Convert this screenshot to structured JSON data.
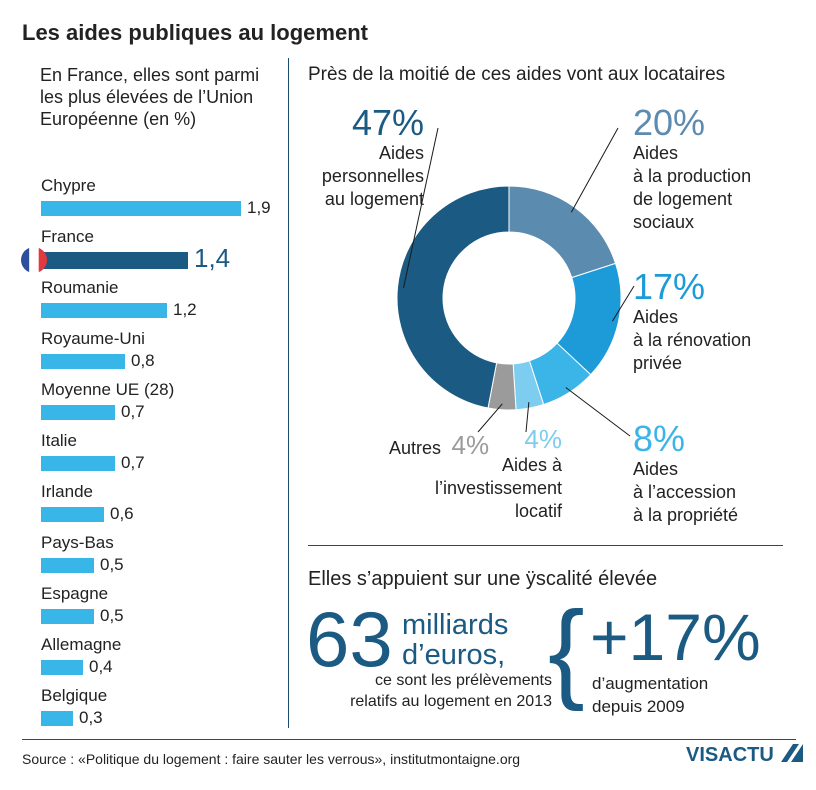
{
  "title": "Les aides publiques au logement",
  "left_intro": "En France, elles sont parmi les plus élevées de l’Union Européenne (en %)",
  "right_title": "Près de la moitié de ces aides vont aux locataires",
  "colors": {
    "bar": "#38b6e8",
    "bar_highlight": "#1b5a82",
    "donut_personnelles": "#1b5a82",
    "donut_production": "#5c8bb0",
    "donut_renovation": "#1d9ad8",
    "donut_accession": "#3bb4e8",
    "donut_investissement": "#7ccdf0",
    "donut_autres": "#9b9b9b"
  },
  "chart_data": [
    {
      "type": "bar",
      "orientation": "horizontal",
      "categories": [
        "Chypre",
        "France",
        "Roumanie",
        "Royaume-Uni",
        "Moyenne UE (28)",
        "Italie",
        "Irlande",
        "Pays-Bas",
        "Espagne",
        "Allemagne",
        "Belgique"
      ],
      "values": [
        1.9,
        1.4,
        1.2,
        0.8,
        0.7,
        0.7,
        0.6,
        0.5,
        0.5,
        0.4,
        0.3
      ],
      "value_labels": [
        "1,9",
        "1,4",
        "1,2",
        "0,8",
        "0,7",
        "0,7",
        "0,6",
        "0,5",
        "0,5",
        "0,4",
        "0,3"
      ],
      "highlight": "France",
      "title": "",
      "xlim": [
        0,
        2.0
      ]
    },
    {
      "type": "pie",
      "donut": true,
      "slices": [
        {
          "key": "production",
          "pct_label": "20%",
          "value": 20,
          "label_lines": [
            "Aides",
            "à la production",
            "de logement",
            "sociaux"
          ]
        },
        {
          "key": "renovation",
          "pct_label": "17%",
          "value": 17,
          "label_lines": [
            "Aides",
            "à la rénovation",
            "privée"
          ]
        },
        {
          "key": "accession",
          "pct_label": "8%",
          "value": 8,
          "label_lines": [
            "Aides",
            "à l’accession",
            "à la propriété"
          ]
        },
        {
          "key": "investissement",
          "pct_label": "4%",
          "value": 4,
          "label_lines": [
            "Aides à",
            "l’investissement",
            "locatif"
          ]
        },
        {
          "key": "autres",
          "pct_label": "4%",
          "value": 4,
          "label_lines": [
            "Autres"
          ]
        },
        {
          "key": "personnelles",
          "pct_label": "47%",
          "value": 47,
          "label_lines": [
            "Aides",
            "personnelles",
            "au logement"
          ]
        }
      ]
    }
  ],
  "fiscal": {
    "title": "Elles s’appuient sur une ÿscalité élevée",
    "big_number": "63",
    "unit_lines": [
      "milliards",
      "d’euros,"
    ],
    "desc_lines": [
      "ce sont les prélèvements",
      "relatifs au logement en 2013"
    ],
    "brace": "{",
    "increase": "+17%",
    "increase_lines": [
      "d’augmentation",
      "depuis 2009"
    ]
  },
  "source": "Source : «Politique du logement : faire sauter les verrous», institutmontaigne.org",
  "logo": {
    "part1": "VIS",
    "part2": "ACTU"
  }
}
